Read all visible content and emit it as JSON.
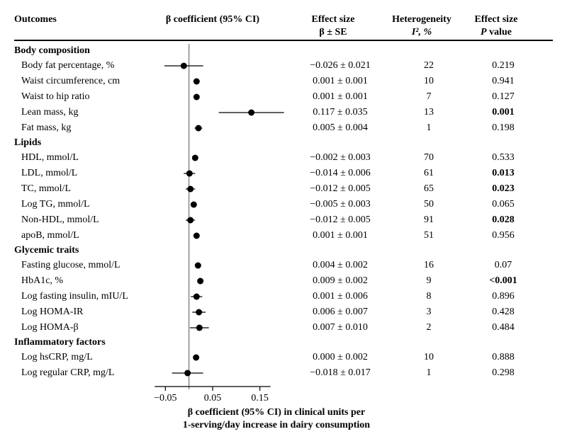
{
  "headers": {
    "outcomes": "Outcomes",
    "coef": "β coefficient (95% CI)",
    "effect_top": "Effect size",
    "effect_sub": "β ± SE",
    "het_top": "Heterogeneity",
    "het_sub": "I², %",
    "p_top": "Effect size",
    "p_sub": "P value"
  },
  "plot": {
    "xmin": -0.1,
    "xmax": 0.2,
    "zero": 0,
    "ticks": [
      -0.05,
      0.05,
      0.15
    ],
    "marker_radius": 4.5,
    "marker_color": "#000000",
    "line_color": "#000000",
    "line_width": 1.2,
    "zero_line_color": "#555555"
  },
  "sections": [
    {
      "title": "Body composition",
      "rows": [
        {
          "label": "Body fat percentage, %",
          "beta": -0.026,
          "lo": -0.067,
          "hi": 0.015,
          "es": "−0.026 ± 0.021",
          "het": "22",
          "p": "0.219",
          "pbold": false
        },
        {
          "label": "Waist circumference, cm",
          "beta": 0.001,
          "lo": -0.001,
          "hi": 0.003,
          "es": "0.001 ± 0.001",
          "het": "10",
          "p": "0.941",
          "pbold": false
        },
        {
          "label": "Waist to hip ratio",
          "beta": 0.001,
          "lo": -0.001,
          "hi": 0.003,
          "es": "0.001 ± 0.001",
          "het": "7",
          "p": "0.127",
          "pbold": false
        },
        {
          "label": "Lean mass, kg",
          "beta": 0.117,
          "lo": 0.048,
          "hi": 0.186,
          "es": "0.117 ± 0.035",
          "het": "13",
          "p": "0.001",
          "pbold": true
        },
        {
          "label": "Fat mass, kg",
          "beta": 0.005,
          "lo": -0.003,
          "hi": 0.013,
          "es": "0.005 ± 0.004",
          "het": "1",
          "p": "0.198",
          "pbold": false
        }
      ]
    },
    {
      "title": "Lipids",
      "rows": [
        {
          "label": "HDL, mmol/L",
          "beta": -0.002,
          "lo": -0.008,
          "hi": 0.004,
          "es": "−0.002 ± 0.003",
          "het": "70",
          "p": "0.533",
          "pbold": false
        },
        {
          "label": "LDL, mmol/L",
          "beta": -0.014,
          "lo": -0.026,
          "hi": -0.002,
          "es": "−0.014 ± 0.006",
          "het": "61",
          "p": "0.013",
          "pbold": true
        },
        {
          "label": "TC, mmol/L",
          "beta": -0.012,
          "lo": -0.022,
          "hi": -0.002,
          "es": "−0.012 ± 0.005",
          "het": "65",
          "p": "0.023",
          "pbold": true
        },
        {
          "label": "Log TG, mmol/L",
          "beta": -0.005,
          "lo": -0.011,
          "hi": 0.001,
          "es": "−0.005 ± 0.003",
          "het": "50",
          "p": "0.065",
          "pbold": false
        },
        {
          "label": "Non-HDL, mmol/L",
          "beta": -0.012,
          "lo": -0.022,
          "hi": -0.002,
          "es": "−0.012 ± 0.005",
          "het": "91",
          "p": "0.028",
          "pbold": true
        },
        {
          "label": "apoB, mmol/L",
          "beta": 0.001,
          "lo": -0.001,
          "hi": 0.003,
          "es": "0.001 ± 0.001",
          "het": "51",
          "p": "0.956",
          "pbold": false
        }
      ]
    },
    {
      "title": "Glycemic traits",
      "rows": [
        {
          "label": "Fasting glucose, mmol/L",
          "beta": 0.004,
          "lo": 0.0,
          "hi": 0.008,
          "es": "0.004 ± 0.002",
          "het": "16",
          "p": "0.07",
          "pbold": false
        },
        {
          "label": "HbA1c, %",
          "beta": 0.009,
          "lo": 0.005,
          "hi": 0.013,
          "es": "0.009 ± 0.002",
          "het": "9",
          "p": "<0.001",
          "pbold": true
        },
        {
          "label": "Log fasting insulin, mIU/L",
          "beta": 0.001,
          "lo": -0.011,
          "hi": 0.013,
          "es": "0.001 ± 0.006",
          "het": "8",
          "p": "0.896",
          "pbold": false
        },
        {
          "label": "Log HOMA-IR",
          "beta": 0.006,
          "lo": -0.008,
          "hi": 0.02,
          "es": "0.006 ± 0.007",
          "het": "3",
          "p": "0.428",
          "pbold": false
        },
        {
          "label": "Log HOMA-β",
          "beta": 0.007,
          "lo": -0.013,
          "hi": 0.027,
          "es": "0.007 ± 0.010",
          "het": "2",
          "p": "0.484",
          "pbold": false
        }
      ]
    },
    {
      "title": "Inflammatory factors",
      "rows": [
        {
          "label": "Log hsCRP, mg/L",
          "beta": 0.0,
          "lo": -0.004,
          "hi": 0.004,
          "es": "0.000 ± 0.002",
          "het": "10",
          "p": "0.888",
          "pbold": false
        },
        {
          "label": "Log regular CRP, mg/L",
          "beta": -0.018,
          "lo": -0.051,
          "hi": 0.015,
          "es": "−0.018 ± 0.017",
          "het": "1",
          "p": "0.298",
          "pbold": false
        }
      ]
    }
  ],
  "axis_label_line1": "β coefficient (95% CI) in clinical units per",
  "axis_label_line2": "1-serving/day increase in dairy consumption"
}
